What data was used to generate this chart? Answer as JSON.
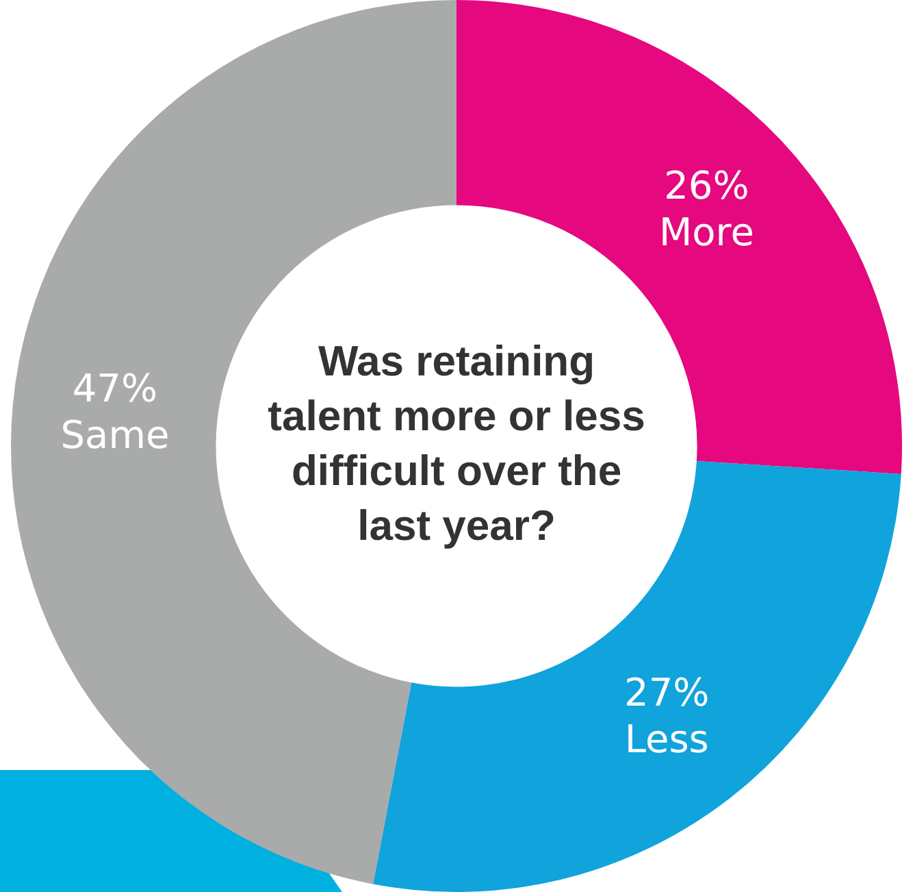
{
  "chart_data": {
    "type": "donut",
    "title": "Was retaining talent more or less difficult over the last year?",
    "categories": [
      "More",
      "Less",
      "Same"
    ],
    "values": [
      26,
      27,
      47
    ],
    "colors": [
      "#e5087f",
      "#10a3dc",
      "#a9aaaa"
    ],
    "value_labels": [
      "26%",
      "27%",
      "47%"
    ]
  }
}
